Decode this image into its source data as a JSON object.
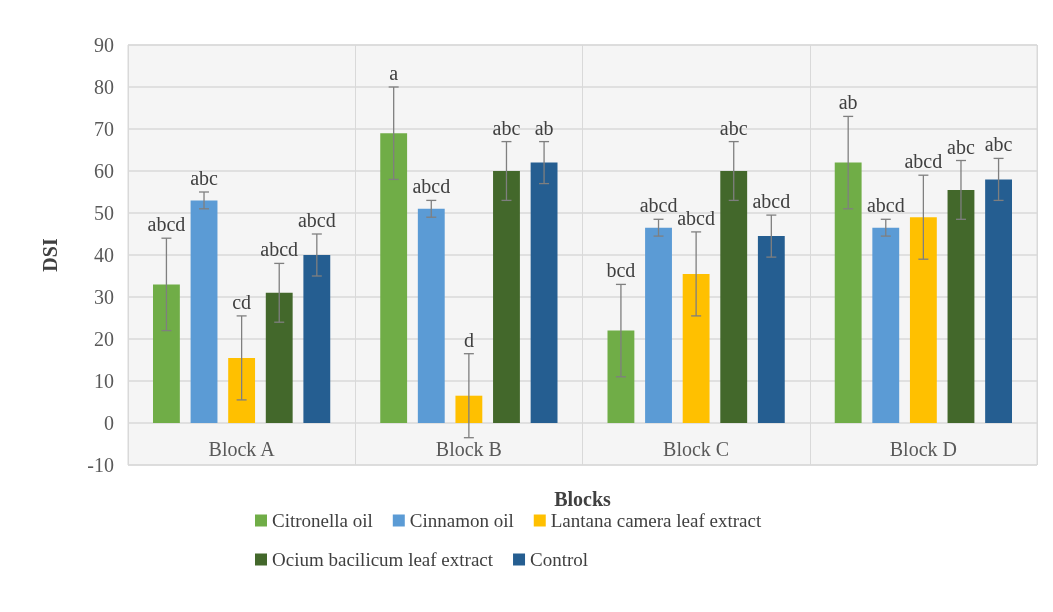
{
  "chart_data": {
    "type": "bar",
    "xlabel": "Blocks",
    "ylabel": "DSI",
    "categories": [
      "Block A",
      "Block B",
      "Block C",
      "Block D"
    ],
    "series": [
      {
        "name": "Citronella oil",
        "color": "#70ad47",
        "values": [
          33,
          69,
          22,
          62
        ],
        "errors": [
          11,
          11,
          11,
          11
        ],
        "value_labels": [
          "abcd",
          "a",
          "bcd",
          "ab"
        ]
      },
      {
        "name": "Cinnamon oil",
        "color": "#5b9bd5",
        "values": [
          53,
          51,
          46.5,
          46.5
        ],
        "errors": [
          2,
          2,
          2,
          2
        ],
        "value_labels": [
          "abc",
          "abcd",
          "abcd",
          "abcd"
        ]
      },
      {
        "name": "Lantana camera leaf extract",
        "color": "#ffc000",
        "values": [
          15.5,
          6.5,
          35.5,
          49
        ],
        "errors": [
          10,
          10,
          10,
          10
        ],
        "value_labels": [
          "cd",
          "d",
          "abcd",
          "abcd"
        ]
      },
      {
        "name": "Ocium bacilicum leaf extract",
        "color": "#43682b",
        "values": [
          31,
          60,
          60,
          55.5
        ],
        "errors": [
          7,
          7,
          7,
          7
        ],
        "value_labels": [
          "abcd",
          "abc",
          "abc",
          "abc"
        ]
      },
      {
        "name": "Control",
        "color": "#255e91",
        "values": [
          40,
          62,
          44.5,
          58
        ],
        "errors": [
          5,
          5,
          5,
          5
        ],
        "value_labels": [
          "abcd",
          "ab",
          "abcd",
          "abc"
        ]
      }
    ],
    "ylim": [
      -10,
      90
    ],
    "yticks": [
      -10,
      0,
      10,
      20,
      30,
      40,
      50,
      60,
      70,
      80,
      90
    ],
    "grid": true,
    "legend": "bottom"
  }
}
